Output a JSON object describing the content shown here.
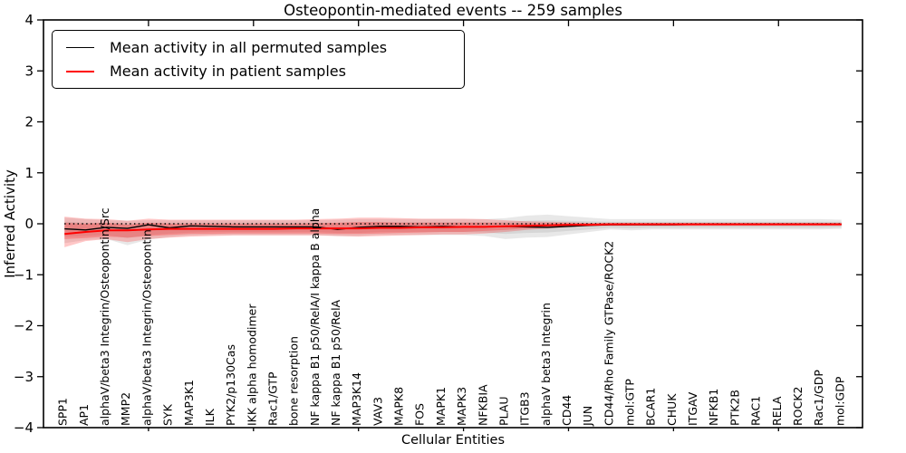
{
  "chart_data": {
    "type": "line",
    "title": "Osteopontin-mediated events -- 259 samples",
    "xlabel": "Cellular Entities",
    "ylabel": "Inferred Activity",
    "ylim": [
      -4,
      4
    ],
    "xlim": [
      0,
      39
    ],
    "grid": false,
    "legend_position": "upper left",
    "legend": {
      "items": [
        {
          "label": "Mean activity in all permuted samples",
          "color": "#000000"
        },
        {
          "label": "Mean activity in patient samples",
          "color": "#ff0000"
        }
      ]
    },
    "yticks": [
      {
        "value": 4,
        "label": "4"
      },
      {
        "value": 3,
        "label": "3"
      },
      {
        "value": 2,
        "label": "2"
      },
      {
        "value": 1,
        "label": "1"
      },
      {
        "value": 0,
        "label": "0"
      },
      {
        "value": -1,
        "label": "−1"
      },
      {
        "value": -2,
        "label": "−2"
      },
      {
        "value": -3,
        "label": "−3"
      },
      {
        "value": -4,
        "label": "−4"
      }
    ],
    "x_axis_tick_positions": [
      5,
      10,
      15,
      20,
      25,
      30,
      35
    ],
    "categories": [
      "SPP1",
      "AP1",
      "alphaV/beta3 Integrin/Osteopontin/Src",
      "MMP2",
      "alphaV/beta3 Integrin/Osteopontin",
      "SYK",
      "MAP3K1",
      "ILK",
      "PYK2/p130Cas",
      "IKK alpha homodimer",
      "Rac1/GTP",
      "bone resorption",
      "NF kappa B1 p50/RelA/I kappa B alpha",
      "NF kappa B1 p50/RelA",
      "MAP3K14",
      "VAV3",
      "MAPK8",
      "FOS",
      "MAPK1",
      "MAPK3",
      "NFKBIA",
      "PLAU",
      "ITGB3",
      "alphaV beta3 Integrin",
      "CD44",
      "JUN",
      "CD44/Rho Family GTPase/ROCK2",
      "mol:GTP",
      "BCAR1",
      "CHUK",
      "ITGAV",
      "NFKB1",
      "PTK2B",
      "RAC1",
      "RELA",
      "ROCK2",
      "Rac1/GDP",
      "mol:GDP"
    ],
    "series": [
      {
        "name": "Mean activity in all permuted samples",
        "color": "#000000",
        "width": 1.4,
        "values": [
          -0.1,
          -0.12,
          -0.07,
          -0.09,
          -0.02,
          -0.08,
          -0.04,
          -0.05,
          -0.06,
          -0.06,
          -0.06,
          -0.06,
          -0.06,
          -0.11,
          -0.07,
          -0.05,
          -0.05,
          -0.06,
          -0.05,
          -0.06,
          -0.06,
          -0.05,
          -0.06,
          -0.07,
          -0.05,
          -0.03,
          -0.02,
          -0.02,
          -0.02,
          -0.02,
          -0.01,
          -0.01,
          -0.01,
          -0.01,
          -0.01,
          -0.01,
          -0.01,
          -0.01
        ]
      },
      {
        "name": "Mean activity in patient samples",
        "color": "#ff0000",
        "width": 2.0,
        "values": [
          -0.2,
          -0.16,
          -0.13,
          -0.13,
          -0.11,
          -0.1,
          -0.1,
          -0.1,
          -0.1,
          -0.1,
          -0.1,
          -0.09,
          -0.09,
          -0.09,
          -0.09,
          -0.08,
          -0.08,
          -0.07,
          -0.07,
          -0.06,
          -0.06,
          -0.05,
          -0.04,
          -0.03,
          -0.02,
          -0.02,
          -0.01,
          -0.01,
          -0.01,
          -0.01,
          -0.01,
          -0.01,
          -0.01,
          -0.01,
          -0.01,
          -0.01,
          -0.01,
          -0.01
        ]
      }
    ],
    "reference_line": {
      "y": 0,
      "style": "dotted",
      "color": "#000000"
    },
    "bands": [
      {
        "name": "permuted-samples-range-outer",
        "color": "#7f7f7f",
        "alpha": 0.18,
        "hi": [
          0.12,
          0.09,
          0.07,
          0.06,
          0.07,
          0.07,
          0.07,
          0.07,
          0.07,
          0.07,
          0.07,
          0.07,
          0.07,
          0.08,
          0.09,
          0.09,
          0.09,
          0.09,
          0.09,
          0.09,
          0.09,
          0.11,
          0.16,
          0.18,
          0.15,
          0.12,
          0.09,
          0.09,
          0.09,
          0.09,
          0.09,
          0.09,
          0.09,
          0.09,
          0.09,
          0.09,
          0.09,
          0.08
        ],
        "lo": [
          -0.38,
          -0.32,
          -0.3,
          -0.42,
          -0.31,
          -0.26,
          -0.23,
          -0.22,
          -0.22,
          -0.22,
          -0.22,
          -0.22,
          -0.22,
          -0.24,
          -0.24,
          -0.22,
          -0.22,
          -0.22,
          -0.22,
          -0.22,
          -0.24,
          -0.3,
          -0.27,
          -0.26,
          -0.21,
          -0.16,
          -0.11,
          -0.13,
          -0.11,
          -0.11,
          -0.11,
          -0.11,
          -0.11,
          -0.11,
          -0.11,
          -0.11,
          -0.11,
          -0.1
        ]
      },
      {
        "name": "permuted-samples-range-inner",
        "color": "#7f7f7f",
        "alpha": 0.16,
        "hi": [
          0.04,
          0.02,
          0.02,
          0.01,
          0.02,
          0.02,
          0.02,
          0.02,
          0.02,
          0.02,
          0.02,
          0.02,
          0.02,
          0.02,
          0.03,
          0.03,
          0.03,
          0.03,
          0.03,
          0.03,
          0.03,
          0.04,
          0.06,
          0.07,
          0.06,
          0.05,
          0.04,
          0.04,
          0.04,
          0.04,
          0.04,
          0.04,
          0.04,
          0.04,
          0.04,
          0.04,
          0.04,
          0.04
        ],
        "lo": [
          -0.25,
          -0.24,
          -0.22,
          -0.28,
          -0.22,
          -0.19,
          -0.17,
          -0.16,
          -0.16,
          -0.16,
          -0.16,
          -0.16,
          -0.16,
          -0.18,
          -0.18,
          -0.16,
          -0.16,
          -0.16,
          -0.16,
          -0.16,
          -0.17,
          -0.2,
          -0.18,
          -0.17,
          -0.14,
          -0.11,
          -0.08,
          -0.09,
          -0.08,
          -0.08,
          -0.08,
          -0.08,
          -0.08,
          -0.08,
          -0.08,
          -0.08,
          -0.08,
          -0.07
        ]
      },
      {
        "name": "patient-samples-range-outer",
        "color": "#ff2020",
        "alpha": 0.25,
        "hi": [
          0.14,
          0.1,
          0.09,
          0.06,
          0.1,
          0.08,
          0.08,
          0.08,
          0.08,
          0.08,
          0.08,
          0.08,
          0.09,
          0.1,
          0.12,
          0.12,
          0.11,
          0.1,
          0.1,
          0.1,
          0.09,
          0.07,
          0.05,
          0.04,
          0.03,
          0.02,
          0.02,
          0.02,
          0.02,
          0.02,
          0.02,
          0.02,
          0.02,
          0.02,
          0.02,
          0.02,
          0.02,
          0.02
        ],
        "lo": [
          -0.46,
          -0.34,
          -0.3,
          -0.36,
          -0.3,
          -0.27,
          -0.25,
          -0.24,
          -0.23,
          -0.23,
          -0.23,
          -0.23,
          -0.23,
          -0.24,
          -0.25,
          -0.24,
          -0.23,
          -0.22,
          -0.21,
          -0.21,
          -0.19,
          -0.16,
          -0.12,
          -0.09,
          -0.07,
          -0.05,
          -0.04,
          -0.04,
          -0.04,
          -0.04,
          -0.04,
          -0.04,
          -0.04,
          -0.04,
          -0.04,
          -0.04,
          -0.04,
          -0.04
        ]
      },
      {
        "name": "patient-samples-range-inner",
        "color": "#ff2020",
        "alpha": 0.28,
        "hi": [
          0.02,
          0.0,
          0.02,
          -0.02,
          0.02,
          0.0,
          0.0,
          0.0,
          0.0,
          0.0,
          0.0,
          0.0,
          0.01,
          0.02,
          0.03,
          0.03,
          0.02,
          0.02,
          0.02,
          0.02,
          0.02,
          0.01,
          0.01,
          0.01,
          0.01,
          0.01,
          0.01,
          0.01,
          0.01,
          0.01,
          0.01,
          0.01,
          0.01,
          0.01,
          0.01,
          0.01,
          0.01,
          0.01
        ],
        "lo": [
          -0.3,
          -0.28,
          -0.25,
          -0.27,
          -0.24,
          -0.22,
          -0.2,
          -0.2,
          -0.19,
          -0.19,
          -0.19,
          -0.19,
          -0.19,
          -0.2,
          -0.2,
          -0.19,
          -0.18,
          -0.17,
          -0.16,
          -0.16,
          -0.14,
          -0.12,
          -0.09,
          -0.07,
          -0.05,
          -0.04,
          -0.03,
          -0.03,
          -0.03,
          -0.03,
          -0.03,
          -0.03,
          -0.03,
          -0.03,
          -0.03,
          -0.03,
          -0.03,
          -0.03
        ]
      }
    ]
  }
}
